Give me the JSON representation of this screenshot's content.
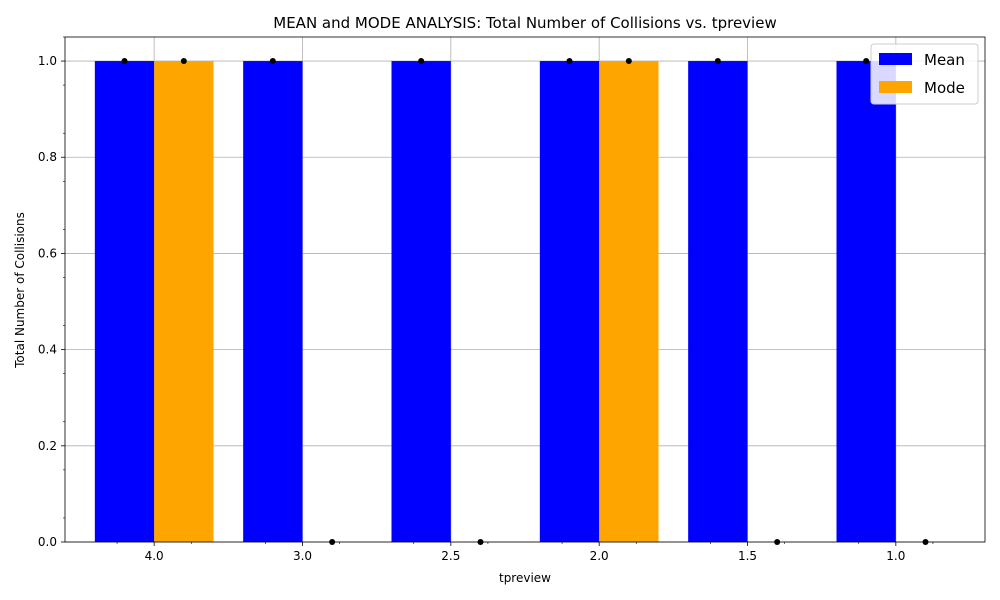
{
  "chart_data": {
    "type": "bar",
    "title": "MEAN and MODE ANALYSIS: Total Number of Collisions vs. tpreview",
    "xlabel": "tpreview",
    "ylabel": "Total Number of Collisions",
    "categories": [
      "4.0",
      "3.0",
      "2.5",
      "2.0",
      "1.5",
      "1.0"
    ],
    "series": [
      {
        "name": "Mean",
        "values": [
          1,
          1,
          1,
          1,
          1,
          1
        ],
        "color": "#0000ff"
      },
      {
        "name": "Mode",
        "values": [
          1,
          0,
          0,
          1,
          0,
          0
        ],
        "color": "#ffa500"
      }
    ],
    "ylim": [
      0,
      1.05
    ],
    "yticks": [
      "0.0",
      "0.2",
      "0.4",
      "0.6",
      "0.8",
      "1.0"
    ],
    "grid": true,
    "legend": "top-right",
    "marker_color": "#000000"
  }
}
